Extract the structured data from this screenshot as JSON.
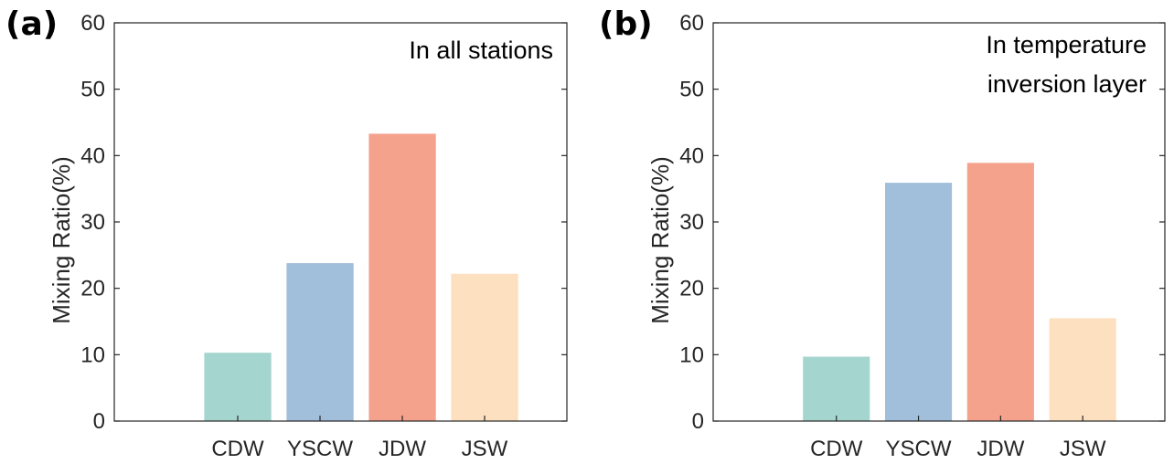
{
  "chart_data": [
    {
      "type": "bar",
      "panel_label": "(a)",
      "annotation": [
        "In all stations"
      ],
      "categories": [
        "CDW",
        "YSCW",
        "JDW",
        "JSW"
      ],
      "values": [
        10.3,
        23.8,
        43.3,
        22.2
      ],
      "colors": [
        "#a5d5cf",
        "#a1bedb",
        "#f4a28c",
        "#fde0bf"
      ],
      "xlabel": "",
      "ylabel": "Mixing Ratio(%)",
      "ylim": [
        0,
        60
      ],
      "yticks": [
        0,
        10,
        20,
        30,
        40,
        50,
        60
      ],
      "grid": false,
      "legend": "none"
    },
    {
      "type": "bar",
      "panel_label": "(b)",
      "annotation": [
        "In temperature",
        "inversion layer"
      ],
      "categories": [
        "CDW",
        "YSCW",
        "JDW",
        "JSW"
      ],
      "values": [
        9.7,
        35.9,
        38.9,
        15.5
      ],
      "colors": [
        "#a5d5cf",
        "#a1bedb",
        "#f4a28c",
        "#fde0bf"
      ],
      "xlabel": "",
      "ylabel": "Mixing Ratio(%)",
      "ylim": [
        0,
        60
      ],
      "yticks": [
        0,
        10,
        20,
        30,
        40,
        50,
        60
      ],
      "grid": false,
      "legend": "none"
    }
  ]
}
